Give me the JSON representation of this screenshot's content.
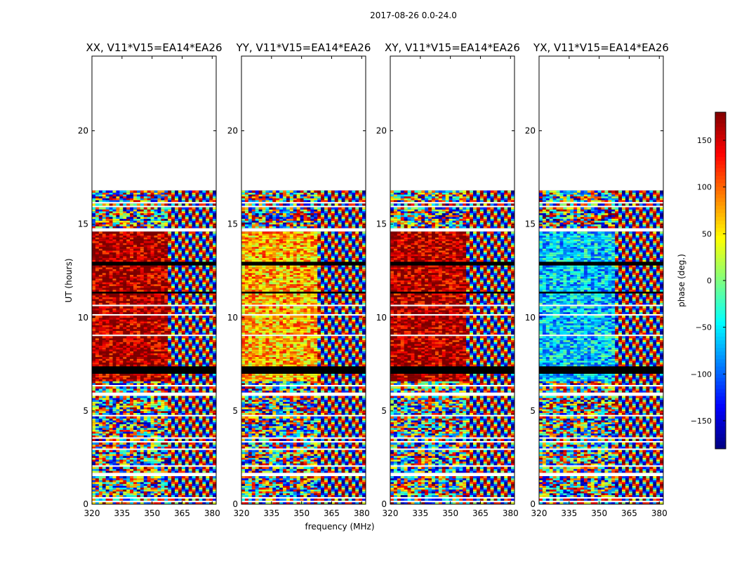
{
  "figure": {
    "suptitle": "2017-08-26 0.0-24.0"
  },
  "chart_data": {
    "type": "heatmap",
    "xlabel": "frequency (MHz)",
    "ylabel": "UT (hours)",
    "xlim": [
      320,
      382
    ],
    "ylim": [
      0,
      24
    ],
    "xticks": [
      320,
      335,
      350,
      365,
      380
    ],
    "yticks": [
      0,
      5,
      10,
      15,
      20
    ],
    "data_extent_hours": [
      0,
      16.7
    ],
    "panels": [
      {
        "title": "XX, V11*V15=EA14*EA26",
        "baseline_phase_deg": 160
      },
      {
        "title": "YY, V11*V15=EA14*EA26",
        "baseline_phase_deg": 70
      },
      {
        "title": "XY, V11*V15=EA14*EA26",
        "baseline_phase_deg": 160
      },
      {
        "title": "YX, V11*V15=EA14*EA26",
        "baseline_phase_deg": -60
      }
    ],
    "colorbar": {
      "label": "phase (deg.)",
      "range": [
        -180,
        180
      ],
      "ticks": [
        150,
        100,
        50,
        0,
        -50,
        -100,
        -150
      ],
      "tick_labels": [
        "150",
        "100",
        "50",
        "0",
        "−50",
        "−100",
        "−150"
      ],
      "colors": [
        "#000080",
        "#0000ff",
        "#00ffff",
        "#ffff00",
        "#ff0000",
        "#800000"
      ]
    }
  }
}
